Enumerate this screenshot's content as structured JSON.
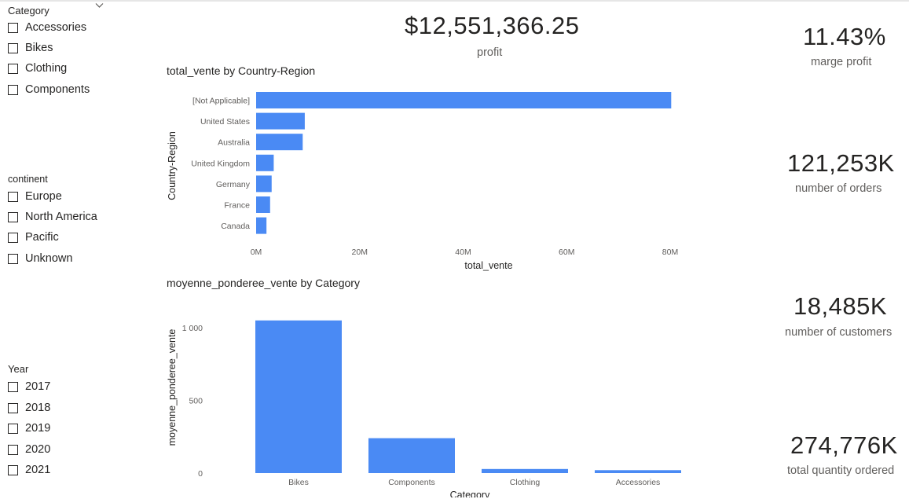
{
  "slicers": {
    "category": {
      "title": "Category",
      "options": [
        "Accessories",
        "Bikes",
        "Clothing",
        "Components"
      ]
    },
    "continent": {
      "title": "continent",
      "options": [
        "Europe",
        "North America",
        "Pacific",
        "Unknown"
      ]
    },
    "year": {
      "title": "Year",
      "options": [
        "2017",
        "2018",
        "2019",
        "2020",
        "2021"
      ]
    }
  },
  "cards": {
    "profit": {
      "value": "$12,551,366.25",
      "label": "profit"
    },
    "marge_profit": {
      "value": "11.43%",
      "label": "marge profit"
    },
    "orders": {
      "value": "121,253K",
      "label": "number of orders"
    },
    "customers": {
      "value": "18,485K",
      "label": "number of customers"
    },
    "quantity": {
      "value": "274,776K",
      "label": "total quantity ordered"
    }
  },
  "colors": {
    "bar": "#4a8af4"
  },
  "chart_data": [
    {
      "type": "bar",
      "orientation": "horizontal",
      "title": "total_vente by Country-Region",
      "xlabel": "total_vente",
      "ylabel": "Country-Region",
      "categories": [
        "[Not Applicable]",
        "United States",
        "Australia",
        "United Kingdom",
        "Germany",
        "France",
        "Canada"
      ],
      "values": [
        80200000,
        9400000,
        9000000,
        3400000,
        3000000,
        2700000,
        2000000
      ],
      "xlim": [
        0,
        80000000
      ],
      "ticks": [
        0,
        20000000,
        40000000,
        60000000,
        80000000
      ],
      "tick_labels": [
        "0M",
        "20M",
        "40M",
        "60M",
        "80M"
      ],
      "grid": false
    },
    {
      "type": "bar",
      "orientation": "vertical",
      "title": "moyenne_ponderee_vente by Category",
      "xlabel": "Category",
      "ylabel": "moyenne_ponderee_vente",
      "categories": [
        "Bikes",
        "Components",
        "Clothing",
        "Accessories"
      ],
      "values": [
        1050,
        240,
        28,
        20
      ],
      "ylim": [
        0,
        1000
      ],
      "ticks": [
        0,
        500,
        1000
      ],
      "tick_labels": [
        "0",
        "500",
        "1 000"
      ],
      "grid": false
    }
  ]
}
